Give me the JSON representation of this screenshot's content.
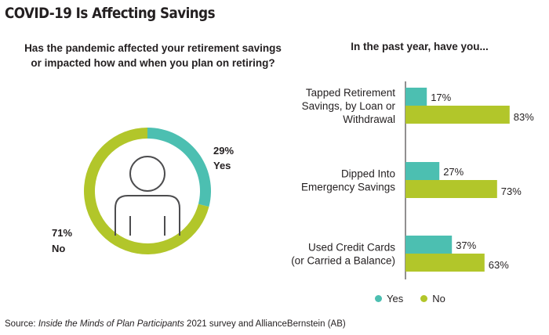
{
  "title": "COVID-19 Is Affecting Savings",
  "colors": {
    "yes": "#4cbfb1",
    "no": "#b2c62a",
    "text": "#231f20"
  },
  "source": {
    "prefix": "Source: ",
    "italic": "Inside the Minds of Plan Participants",
    "suffix": " 2021 survey and AllianceBernstein (AB)"
  },
  "legend": {
    "yes": "Yes",
    "no": "No"
  },
  "chart_data": [
    {
      "type": "pie",
      "title": "Has the pandemic affected your retirement savings or impacted how and when you plan on retiring?",
      "title_lines": [
        "Has the pandemic affected your retirement savings",
        "or impacted how and when you plan on retiring?"
      ],
      "icon": "person-icon",
      "slices": [
        {
          "name": "Yes",
          "value": 29,
          "label": "29%",
          "color": "#4cbfb1"
        },
        {
          "name": "No",
          "value": 71,
          "label": "71%",
          "color": "#b2c62a"
        }
      ]
    },
    {
      "type": "bar",
      "orientation": "horizontal",
      "title": "In the past year, have you...",
      "categories": [
        "Tapped Retirement Savings, by Loan or Withdrawal",
        "Dipped Into Emergency Savings",
        "Used Credit Cards (or Carried a Balance)"
      ],
      "category_lines": [
        [
          "Tapped Retirement",
          "Savings, by Loan or",
          "Withdrawal"
        ],
        [
          "Dipped Into",
          "Emergency Savings"
        ],
        [
          "Used Credit Cards",
          "(or Carried a Balance)"
        ]
      ],
      "series": [
        {
          "name": "Yes",
          "values": [
            17,
            27,
            37
          ],
          "labels": [
            "17%",
            "27%",
            "37%"
          ],
          "color": "#4cbfb1"
        },
        {
          "name": "No",
          "values": [
            83,
            73,
            63
          ],
          "labels": [
            "83%",
            "73%",
            "63%"
          ],
          "color": "#b2c62a"
        }
      ],
      "xlim": [
        0,
        100
      ],
      "grid": false,
      "legend": "bottom"
    }
  ]
}
